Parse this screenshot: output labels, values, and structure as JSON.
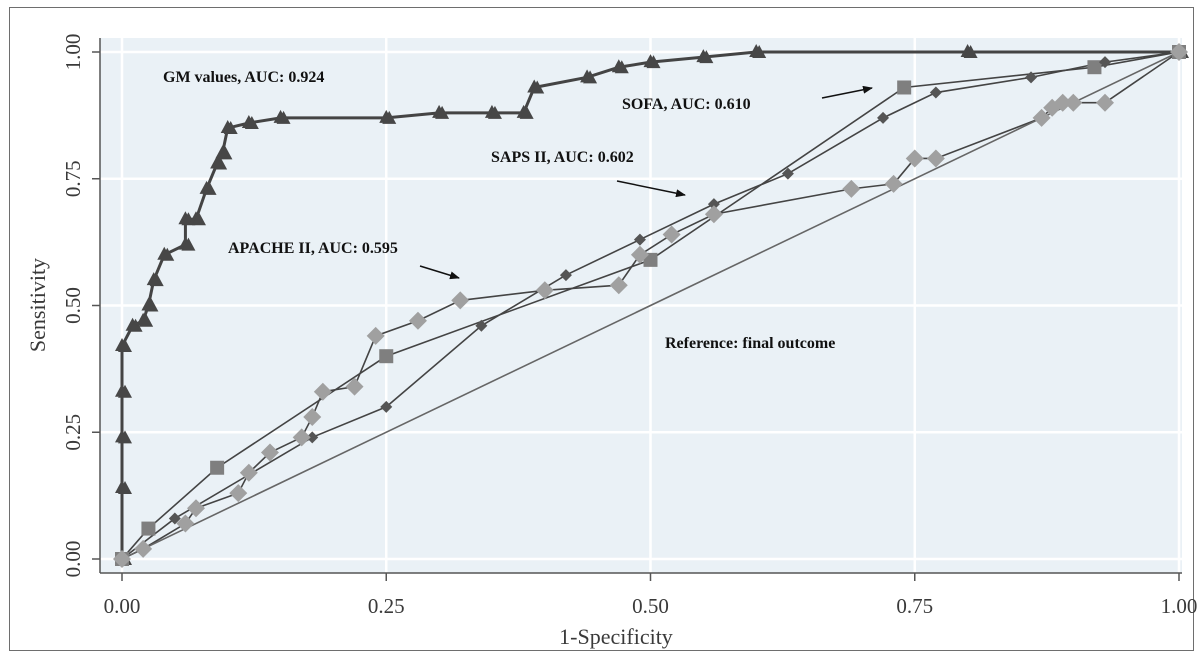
{
  "chart_data": {
    "type": "line",
    "xlabel": "1-Specificity",
    "ylabel": "Sensitivity",
    "xlim": [
      0,
      1
    ],
    "ylim": [
      0,
      1
    ],
    "grid": true,
    "x_ticks": [
      "0.00",
      "0.25",
      "0.50",
      "0.75",
      "1.00"
    ],
    "y_ticks": [
      "0.00",
      "0.25",
      "0.50",
      "0.75",
      "1.00"
    ],
    "series": [
      {
        "name": "GM values, AUC: 0.924",
        "marker": "triangle",
        "color": "#474747",
        "points": [
          [
            0,
            0
          ],
          [
            0,
            0.14
          ],
          [
            0,
            0.24
          ],
          [
            0,
            0.33
          ],
          [
            0,
            0.42
          ],
          [
            0.01,
            0.46
          ],
          [
            0.02,
            0.47
          ],
          [
            0.025,
            0.5
          ],
          [
            0.03,
            0.55
          ],
          [
            0.04,
            0.6
          ],
          [
            0.06,
            0.62
          ],
          [
            0.06,
            0.67
          ],
          [
            0.07,
            0.67
          ],
          [
            0.08,
            0.73
          ],
          [
            0.09,
            0.78
          ],
          [
            0.095,
            0.8
          ],
          [
            0.1,
            0.85
          ],
          [
            0.12,
            0.86
          ],
          [
            0.15,
            0.87
          ],
          [
            0.25,
            0.87
          ],
          [
            0.3,
            0.88
          ],
          [
            0.35,
            0.88
          ],
          [
            0.38,
            0.88
          ],
          [
            0.39,
            0.93
          ],
          [
            0.44,
            0.95
          ],
          [
            0.47,
            0.97
          ],
          [
            0.5,
            0.98
          ],
          [
            0.55,
            0.99
          ],
          [
            0.6,
            1.0
          ],
          [
            0.8,
            1.0
          ],
          [
            1.0,
            1.0
          ]
        ]
      },
      {
        "name": "SOFA, AUC: 0.610",
        "marker": "square",
        "color": "#7f7f7f",
        "points": [
          [
            0,
            0
          ],
          [
            0.025,
            0.06
          ],
          [
            0.09,
            0.18
          ],
          [
            0.25,
            0.4
          ],
          [
            0.5,
            0.59
          ],
          [
            0.74,
            0.93
          ],
          [
            0.92,
            0.97
          ],
          [
            1.0,
            1.0
          ]
        ]
      },
      {
        "name": "SAPS II, AUC: 0.602",
        "marker": "diamond",
        "color": "#555555",
        "points": [
          [
            0,
            0
          ],
          [
            0.05,
            0.08
          ],
          [
            0.18,
            0.24
          ],
          [
            0.25,
            0.3
          ],
          [
            0.34,
            0.46
          ],
          [
            0.42,
            0.56
          ],
          [
            0.49,
            0.63
          ],
          [
            0.56,
            0.7
          ],
          [
            0.63,
            0.76
          ],
          [
            0.72,
            0.87
          ],
          [
            0.77,
            0.92
          ],
          [
            0.86,
            0.95
          ],
          [
            0.93,
            0.98
          ],
          [
            1.0,
            1.0
          ]
        ]
      },
      {
        "name": "APACHE II, AUC: 0.595",
        "marker": "diamond",
        "color": "#a0a0a0",
        "points": [
          [
            0,
            0
          ],
          [
            0.02,
            0.02
          ],
          [
            0.06,
            0.07
          ],
          [
            0.07,
            0.1
          ],
          [
            0.11,
            0.13
          ],
          [
            0.12,
            0.17
          ],
          [
            0.14,
            0.21
          ],
          [
            0.17,
            0.24
          ],
          [
            0.18,
            0.28
          ],
          [
            0.19,
            0.33
          ],
          [
            0.22,
            0.34
          ],
          [
            0.24,
            0.44
          ],
          [
            0.28,
            0.47
          ],
          [
            0.32,
            0.51
          ],
          [
            0.4,
            0.53
          ],
          [
            0.47,
            0.54
          ],
          [
            0.49,
            0.6
          ],
          [
            0.52,
            0.64
          ],
          [
            0.56,
            0.68
          ],
          [
            0.69,
            0.73
          ],
          [
            0.73,
            0.74
          ],
          [
            0.75,
            0.79
          ],
          [
            0.77,
            0.79
          ],
          [
            0.87,
            0.87
          ],
          [
            0.88,
            0.89
          ],
          [
            0.89,
            0.9
          ],
          [
            0.9,
            0.9
          ],
          [
            0.93,
            0.9
          ],
          [
            1.0,
            1.0
          ]
        ]
      },
      {
        "name": "Reference: final outcome",
        "marker": "none",
        "color": "#555555",
        "points": [
          [
            0,
            0
          ],
          [
            1,
            1
          ]
        ]
      }
    ],
    "annotations": [
      {
        "text": "GM values, AUC: 0.924"
      },
      {
        "text": "SOFA, AUC: 0.610"
      },
      {
        "text": "SAPS II, AUC: 0.602"
      },
      {
        "text": "APACHE II, AUC: 0.595"
      },
      {
        "text": "Reference: final outcome"
      }
    ]
  }
}
